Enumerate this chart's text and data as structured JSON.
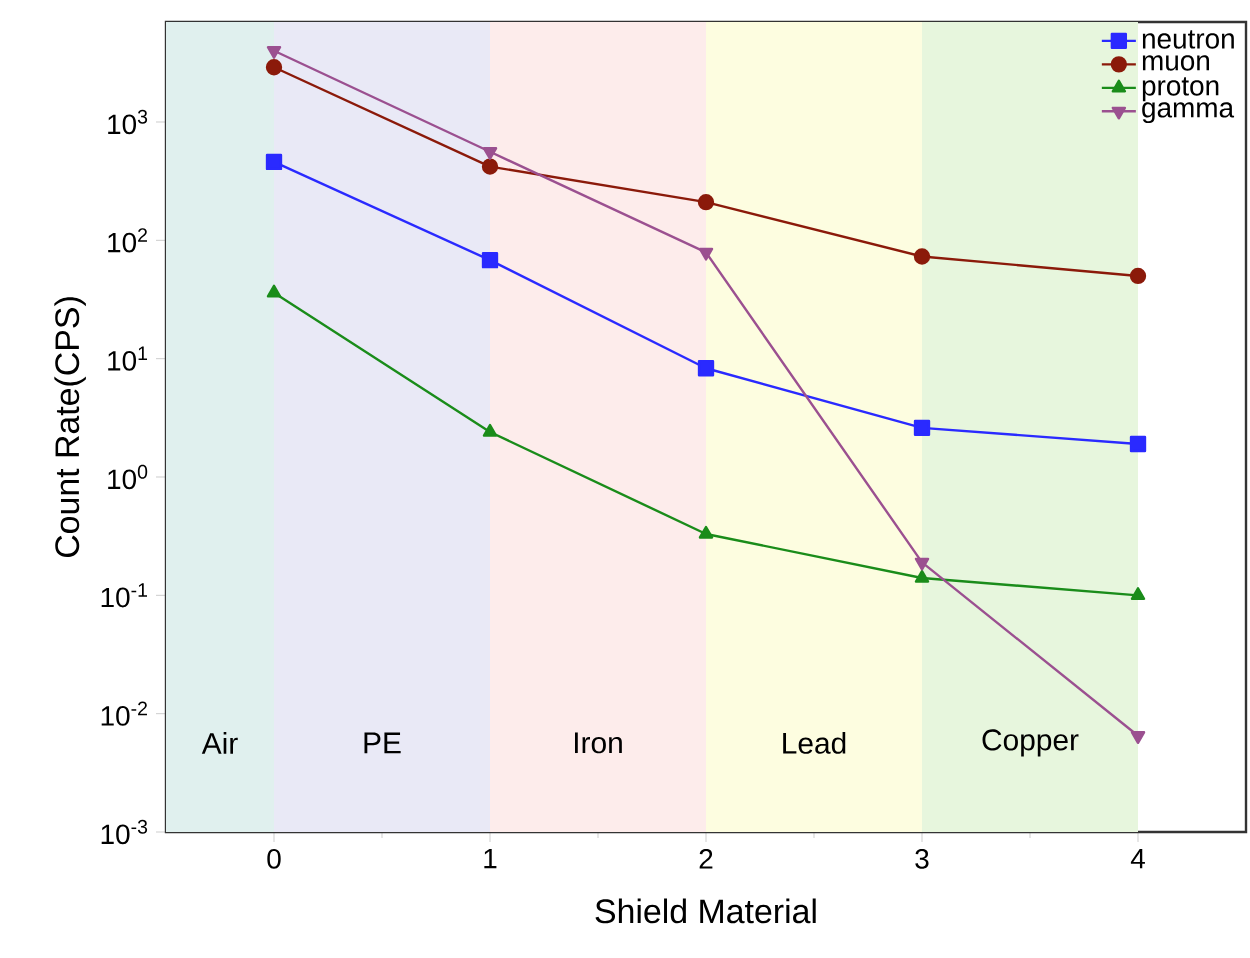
{
  "chart_data": {
    "type": "line",
    "xlabel": "Shield Material",
    "ylabel": "Count Rate(CPS)",
    "x": [
      0,
      1,
      2,
      3,
      4
    ],
    "series": [
      {
        "name": "neutron",
        "color": "#2a2aff",
        "marker": "square",
        "values": [
          460,
          68,
          8.3,
          2.6,
          1.9
        ]
      },
      {
        "name": "muon",
        "color": "#8b1a0a",
        "marker": "circle",
        "values": [
          2900,
          420,
          210,
          73,
          50
        ]
      },
      {
        "name": "proton",
        "color": "#1a8c1a",
        "marker": "triangle",
        "values": [
          36,
          2.4,
          0.33,
          0.14,
          0.1
        ]
      },
      {
        "name": "gamma",
        "color": "#9b5090",
        "marker": "triangle-down",
        "values": [
          4000,
          560,
          79,
          0.19,
          0.0065
        ]
      }
    ],
    "log": "y",
    "xlim": [
      -0.5,
      4.5
    ],
    "ylim": [
      0.001,
      7000
    ],
    "xticks": [
      0,
      1,
      2,
      3,
      4
    ],
    "yticks": [
      {
        "value": 0.001,
        "label": "10$^{-3}$"
      },
      {
        "value": 0.01,
        "label": "10$^{-2}$"
      },
      {
        "value": 0.1,
        "label": "10$^{-1}$"
      },
      {
        "value": 1,
        "label": "10$^{0}$"
      },
      {
        "value": 10,
        "label": "10$^{1}$"
      },
      {
        "value": 100,
        "label": "10$^{2}$"
      },
      {
        "value": 1000,
        "label": "10$^{3}$"
      }
    ],
    "bands": [
      {
        "axis": "x",
        "from": -0.5,
        "to": 0,
        "label": "Air",
        "color": "#e0f0ee"
      },
      {
        "axis": "x",
        "from": 0,
        "to": 1,
        "label": "PE",
        "color": "#e9e9f6"
      },
      {
        "axis": "x",
        "from": 1,
        "to": 2,
        "label": "Iron",
        "color": "#fdeceb"
      },
      {
        "axis": "x",
        "from": 2,
        "to": 3,
        "label": "Lead",
        "color": "#fdfde0"
      },
      {
        "axis": "x",
        "from": 3,
        "to": 4,
        "label": "Copper",
        "color": "#e7f6dd"
      }
    ],
    "legend": "top right",
    "grid": false
  }
}
